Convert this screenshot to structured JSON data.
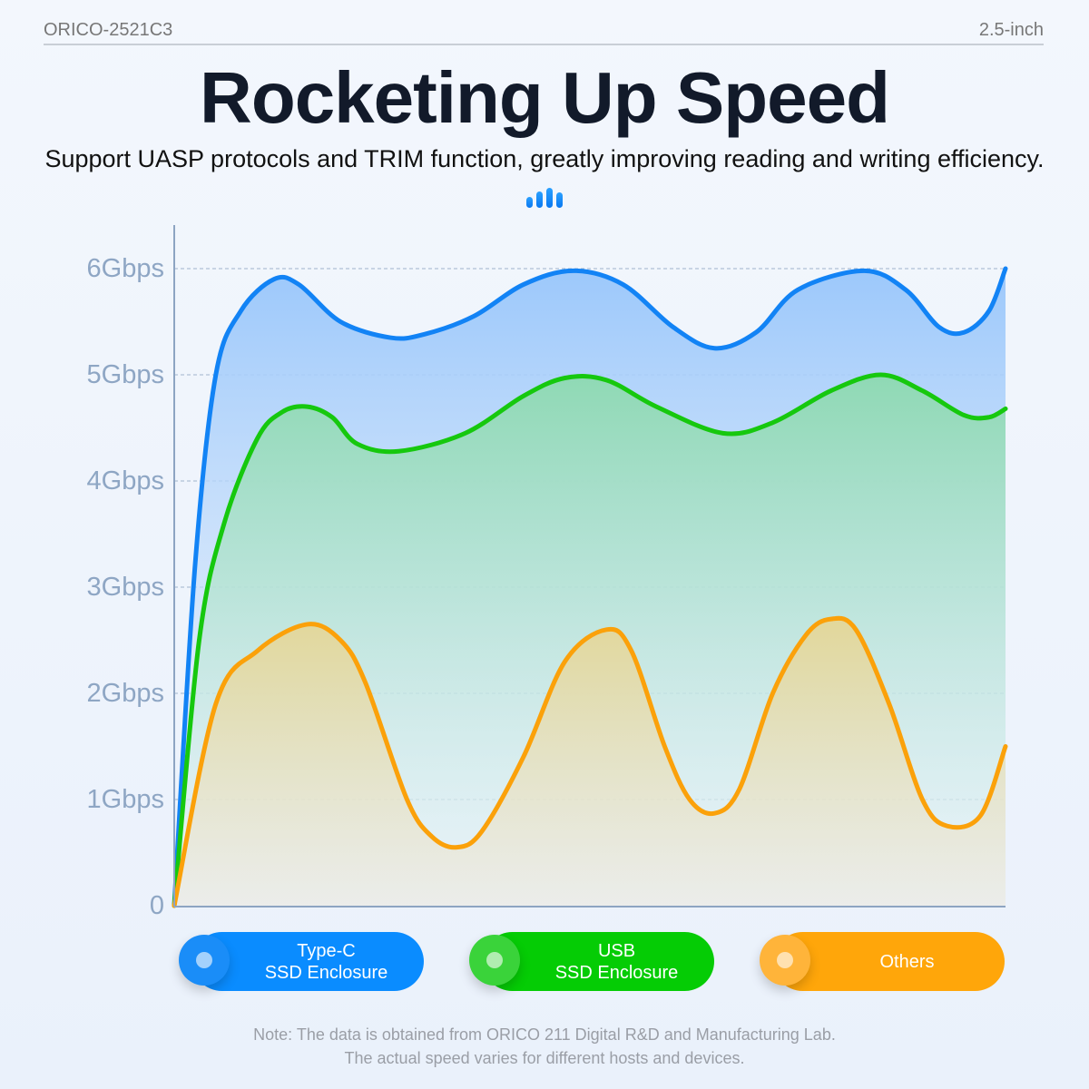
{
  "header": {
    "model": "ORICO-2521C3",
    "size": "2.5-inch"
  },
  "title": "Rocketing Up Speed",
  "subtitle": "Support UASP protocols and TRIM function, greatly improving reading and writing efficiency.",
  "icon": "signal-bars-icon",
  "chart_data": {
    "type": "area",
    "title": "",
    "xlabel": "",
    "ylabel": "",
    "ylim": [
      0,
      6
    ],
    "xlim": [
      0,
      100
    ],
    "grid": true,
    "yticks": [
      {
        "v": 0,
        "label": "0"
      },
      {
        "v": 1,
        "label": "1Gbps"
      },
      {
        "v": 2,
        "label": "2Gbps"
      },
      {
        "v": 3,
        "label": "3Gbps"
      },
      {
        "v": 4,
        "label": "4Gbps"
      },
      {
        "v": 5,
        "label": "5Gbps"
      },
      {
        "v": 6,
        "label": "6Gbps"
      }
    ],
    "legend_position": "bottom",
    "series": [
      {
        "name": "Type-C SSD Enclosure",
        "color": "#1283f5",
        "points": [
          [
            0,
            0
          ],
          [
            2.5,
            3.2
          ],
          [
            5,
            5.0
          ],
          [
            8,
            5.6
          ],
          [
            12,
            5.9
          ],
          [
            15,
            5.85
          ],
          [
            20,
            5.5
          ],
          [
            26,
            5.35
          ],
          [
            30,
            5.38
          ],
          [
            36,
            5.55
          ],
          [
            42,
            5.85
          ],
          [
            48,
            5.98
          ],
          [
            54,
            5.85
          ],
          [
            60,
            5.45
          ],
          [
            65,
            5.25
          ],
          [
            70,
            5.4
          ],
          [
            75,
            5.8
          ],
          [
            83,
            5.98
          ],
          [
            88,
            5.8
          ],
          [
            92,
            5.45
          ],
          [
            95,
            5.4
          ],
          [
            98,
            5.6
          ],
          [
            100,
            6.0
          ]
        ]
      },
      {
        "name": "USB SSD Enclosure",
        "color": "#16c80e",
        "points": [
          [
            0,
            0
          ],
          [
            3,
            2.5
          ],
          [
            6,
            3.6
          ],
          [
            10,
            4.4
          ],
          [
            13,
            4.65
          ],
          [
            16,
            4.7
          ],
          [
            19,
            4.6
          ],
          [
            22,
            4.35
          ],
          [
            27,
            4.28
          ],
          [
            35,
            4.45
          ],
          [
            42,
            4.8
          ],
          [
            47,
            4.97
          ],
          [
            52,
            4.95
          ],
          [
            58,
            4.7
          ],
          [
            66,
            4.45
          ],
          [
            72,
            4.55
          ],
          [
            79,
            4.85
          ],
          [
            85,
            5.0
          ],
          [
            90,
            4.85
          ],
          [
            95,
            4.62
          ],
          [
            98,
            4.6
          ],
          [
            100,
            4.68
          ]
        ]
      },
      {
        "name": "Others",
        "color": "#fba10a",
        "points": [
          [
            0,
            0
          ],
          [
            5,
            1.9
          ],
          [
            10,
            2.4
          ],
          [
            16,
            2.65
          ],
          [
            20,
            2.5
          ],
          [
            23,
            2.1
          ],
          [
            28,
            1.0
          ],
          [
            31,
            0.65
          ],
          [
            34,
            0.55
          ],
          [
            37,
            0.7
          ],
          [
            42,
            1.4
          ],
          [
            47,
            2.3
          ],
          [
            52,
            2.6
          ],
          [
            55,
            2.4
          ],
          [
            59,
            1.5
          ],
          [
            62,
            1.0
          ],
          [
            65,
            0.87
          ],
          [
            68,
            1.1
          ],
          [
            72,
            2.0
          ],
          [
            76,
            2.55
          ],
          [
            79,
            2.7
          ],
          [
            82,
            2.6
          ],
          [
            86,
            1.9
          ],
          [
            90,
            1.0
          ],
          [
            93,
            0.75
          ],
          [
            97,
            0.85
          ],
          [
            100,
            1.5
          ]
        ]
      }
    ]
  },
  "legend": [
    {
      "line1": "Type-C",
      "line2": "SSD Enclosure",
      "color": "#0a8cff",
      "knob": "#1a8df8"
    },
    {
      "line1": "USB",
      "line2": "SSD Enclosure",
      "color": "#05cc05",
      "knob": "#3ad33a"
    },
    {
      "line1": "Others",
      "line2": "",
      "color": "#ffa60a",
      "knob": "#ffb43a"
    }
  ],
  "note": {
    "line1": "Note: The data is obtained from ORICO 211 Digital R&D and Manufacturing Lab.",
    "line2": "The actual speed varies for different hosts and devices."
  }
}
